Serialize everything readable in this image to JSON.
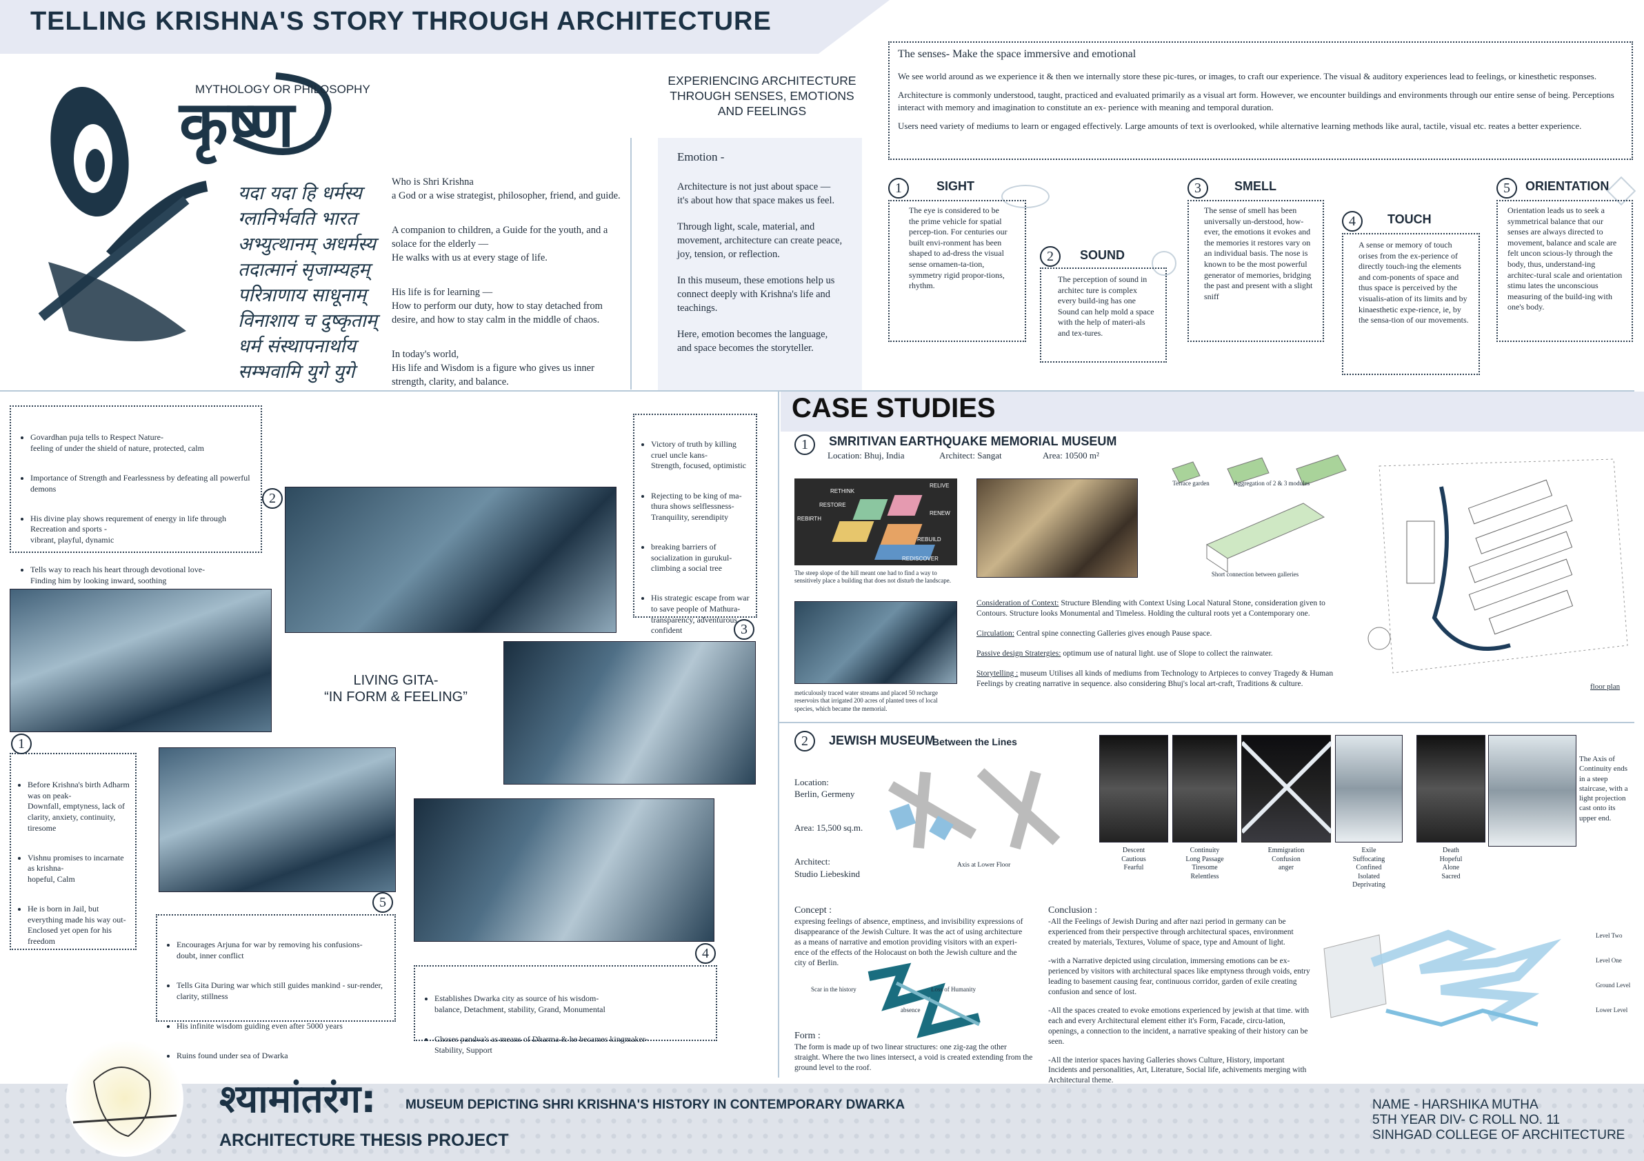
{
  "header": {
    "title": "TELLING KRISHNA'S STORY THROUGH ARCHITECTURE"
  },
  "intro": {
    "subtitle": "MYTHOLOGY OR PHILOSOPHY",
    "devanagari_big": "कृष्ण",
    "shloka": [
      "यदा यदा हि धर्मस्य",
      "ग्लानिर्भवति भारत",
      "अभ्युत्थानम् अधर्मस्य",
      "तदात्मानं सृजाम्यहम्",
      "परित्राणाय साधूनाम्",
      "विनाशाय च दुष्कृताम्",
      "धर्म संस्थापनार्थाय",
      "सम्भवामि युगे युगे"
    ],
    "paragraphs": [
      "Who is Shri Krishna\na God or a wise strategist, philosopher, friend, and guide.",
      "A companion to children, a Guide for the youth, and a solace for the elderly —\nHe walks with us at every stage of life.",
      "His life is for learning —\nHow to perform our duty, how to stay detached from desire, and how to stay calm in the middle of chaos.",
      "In today's world,\nHis life and Wisdom is a figure who gives us inner strength, clarity, and balance."
    ]
  },
  "experience": {
    "heading": "EXPERIENCING ARCHITECTURE THROUGH SENSES, EMOTIONS AND FEELINGS",
    "emotion_title": "Emotion -",
    "emotion_paras": [
      "Architecture is not just about space — it's about how that space makes us feel.",
      "Through light, scale, material, and movement, architecture can create peace, joy, tension, or reflection.",
      "In this museum, these emotions help us connect deeply with Krishna's life and teachings.",
      "Here, emotion becomes the language, and space becomes the storyteller."
    ]
  },
  "senses": {
    "title": "The senses-  Make the space immersive and emotional",
    "paras": [
      "We see world around as we experience it & then we internally store these pic-tures, or images, to craft our experience. The visual & auditory experiences lead to feelings, or kinesthetic responses.",
      "Architecture is commonly understood, taught, practiced and evaluated primarily as a visual art form. However, we encounter buildings and environments through our entire sense of being. Perceptions interact with memory and imagination to constitute an ex- perience with meaning and temporal duration.",
      "Users need variety of mediums to learn or engaged effectively. Large amounts of text is overlooked, while alternative learning methods like aural, tactile, visual etc. reates a better experience."
    ],
    "items": [
      {
        "num": "1",
        "name": "SIGHT",
        "text": "The eye is considered to be the prime vehicle for spatial percep-tion. For centuries our built envi-ronment has been shaped to ad-dress the visual sense ornamen-ta-tion, symmetry rigid propor-tions, rhythm."
      },
      {
        "num": "2",
        "name": "SOUND",
        "text": "The perception of sound in architec ture is complex every build-ing has one Sound can help mold a space with the help of materi-als and tex-tures."
      },
      {
        "num": "3",
        "name": "SMELL",
        "text": "The sense of smell has been universally un-derstood, how-ever, the emotions it evokes and the memories it restores vary on an individual basis. The nose is known to be the most powerful generator of memories, bridging the past and present with a slight sniff"
      },
      {
        "num": "4",
        "name": "TOUCH",
        "text": "A sense or memory of touch orises from the ex-perience of directly touch-ing the elements and com-ponents of space and thus space is perceived by the visualis-ation of its limits and by kinaesthetic expe-rience, ie, by the sensa-tion of our movements."
      },
      {
        "num": "5",
        "name": "ORIENTATION",
        "text": "Orientation leads us to seek a symmetrical balance that our senses are always directed to movement, balance and scale are felt uncon scious-ly through the body, thus, understand-ing architec-tural scale and orientation stimu lates the unconscious measuring of the build-ing with one's body."
      }
    ]
  },
  "story": {
    "center_title": "LIVING GITA-",
    "center_sub": "“IN FORM & FEELING”",
    "box_a": [
      "Govardhan puja tells to Respect Nature-\nfeeling of under the shield of nature, protected, calm",
      "Importance of Strength and Fearlessness by defeating all powerful demons",
      "His divine play shows requrement of energy in life through Recreation and sports -\nvibrant, playful, dynamic",
      "Tells way to reach his heart through devotional love-\nFinding him by looking inward, soothing"
    ],
    "box_b": [
      "Victory of truth by killing cruel uncle kans-\nStrength, focused, optimistic",
      "Rejecting to be king of ma-thura shows selflessness-\nTranquility, serendipity",
      "breaking barriers of socialization in gurukul-\nclimbing a social tree",
      "His strategic escape from war to save people of Mathura-\ntransparency, adventurous, confident"
    ],
    "box_c": [
      "Before Krishna's birth Adharm was on peak-\nDownfall, emptyness, lack of clarity, anxiety, continuity, tiresome",
      "Vishnu promises to incarnate as krishna-\nhopeful, Calm",
      "He is born in Jail, but everything made his way out-\nEnclosed yet open for his freedom"
    ],
    "box_d": [
      "Encourages Arjuna for war by removing his confusions-\ndoubt, inner conflict",
      "Tells Gita During war which still guides mankind - sur-render, clarity, stillness",
      "His infinite wisdom guiding even after 5000 years",
      "Ruins found under sea of Dwarka"
    ],
    "box_e": [
      "Establishes Dwarka city as source of his wisdom-\nbalance, Detachment, stability, Grand, Monumental",
      "Choses pandva's as means of Dharma & he becames kingmaker-\nStability, Support"
    ],
    "nums": [
      "1",
      "2",
      "3",
      "4",
      "5"
    ]
  },
  "case": {
    "heading": "CASE STUDIES",
    "cs1": {
      "num": "1",
      "title": "SMRITIVAN EARTHQUAKE MEMORIAL MUSEUM",
      "location": "Location: Bhuj, India",
      "architect": "Architect: Sangat",
      "area": "Area: 10500 m²",
      "zones": [
        "RETHINK",
        "RELIVE",
        "RESTORE",
        "RENEW",
        "REBIRTH",
        "REBUILD",
        "REDISCOVER"
      ],
      "cap1": "The steep slope of the hill meant one had to find a way to sensitively place a building that does not disturb the landscape.",
      "cap2": "meticulously traced water streams and placed 50 recharge reservoirs that irrigated 200 acres of planted trees of local species, which became the memorial.",
      "diag": [
        "Terrace garden",
        "Aggregation of 2 & 3 modules",
        "Short connection between galleries"
      ],
      "points": [
        {
          "label": "Consideration of Context:",
          "text": " Structure Blending with Context Using Local Natural Stone, consideration given to Contours. Structure looks Monumental and Timeless. Holding the cultural roots yet a Contemporary one."
        },
        {
          "label": "Circulation:",
          "text": " Central spine connecting Galleries gives enough Pause space."
        },
        {
          "label": "Passive design Stratergies:",
          "text": " optimum use of natural light. use of Slope to collect the rainwater."
        },
        {
          "label": "Storytelling :",
          "text": " museum Utilises all kinds of mediums from Technology to Artpieces to convey Tragedy & Human Feelings by creating narrative in sequence. also considering Bhuj's local art-craft, Traditions & culture."
        }
      ],
      "floor": "floor plan"
    },
    "cs2": {
      "num": "2",
      "title": "JEWISH MUSEUM",
      "subtitle": "Between the Lines",
      "location": "Location:\nBerlin, Germeny",
      "area": "Area: 15,500 sq.m.",
      "architect": "Architect:\nStudio Liebeskind",
      "axis": "Axis at Lower Floor",
      "photos": [
        {
          "cap": "Descent\nCautious\nFearful"
        },
        {
          "cap": "Continuity\nLong Passage\nTiresome\nRelentless"
        },
        {
          "cap": "Emmigration\nConfusion\nanger"
        },
        {
          "cap": "Exile\nSuffocating\nConfined\nIsolated\nDeprivating"
        },
        {
          "cap": "Death\nHopeful\nAlone\nSacred"
        }
      ],
      "axis_text": "The Axis of Continuity ends in a steep staircase, with a light projection cast onto its upper end.",
      "concept_title": "Concept :",
      "concept": "expresing feelings of absence, emptiness, and invisibility expressions of disappearance of the Jewish Culture. It was the act of using architecture as a means of narrative and emotion providing visitors with an experi-ence of the effects of the Holocaust on both the Jewish culture and the city of Berlin.",
      "zz": [
        "Scar in the history",
        "Loss of Humanity",
        "absence"
      ],
      "form_title": "Form :",
      "form": "The form is made up of two linear structures: one zig-zag the other straight. Where the two lines intersect, a void is created extending from the ground level to the roof.",
      "conclusion_title": "Conclusion :",
      "conclusion": [
        "-All the Feelings of Jewish During and after nazi period in germany can be experienced from their perspective through architectural spaces, environment created by materials, Textures, Volume of space, type and Amount of light.",
        "-with a Narrative depicted using circulation, immersing emotions can be ex-perienced by visitors with architectural spaces like emptyness through voids, entry leading to basement causing fear, continuous corridor, garden of exile creating confusion and sence of lost.",
        "-All the spaces created to evoke emotions experienced by jewish at that time. with each and every Architectural element either it's Form, Facade, circu-lation, openings, a connection to the incident, a narrative speaking of their history can be seen.",
        "-All the interior spaces having Galleries shows Culture, History, important Incidents and personalities, Art, Literature, Social life, achivements merging with Architectural theme."
      ],
      "levels": [
        "Level Two",
        "Level One",
        "Ground Level",
        "Lower Level"
      ]
    }
  },
  "footer": {
    "brand": "श्यामांतरंग:",
    "subtitle": "MUSEUM DEPICTING SHRI KRISHNA'S HISTORY IN CONTEMPORARY DWARKA",
    "project": "ARCHITECTURE THESIS PROJECT",
    "name": "NAME - HARSHIKA MUTHA",
    "year": "5TH YEAR DIV- C ROLL NO. 11",
    "college": "SINHGAD COLLEGE OF ARCHITECTURE"
  }
}
